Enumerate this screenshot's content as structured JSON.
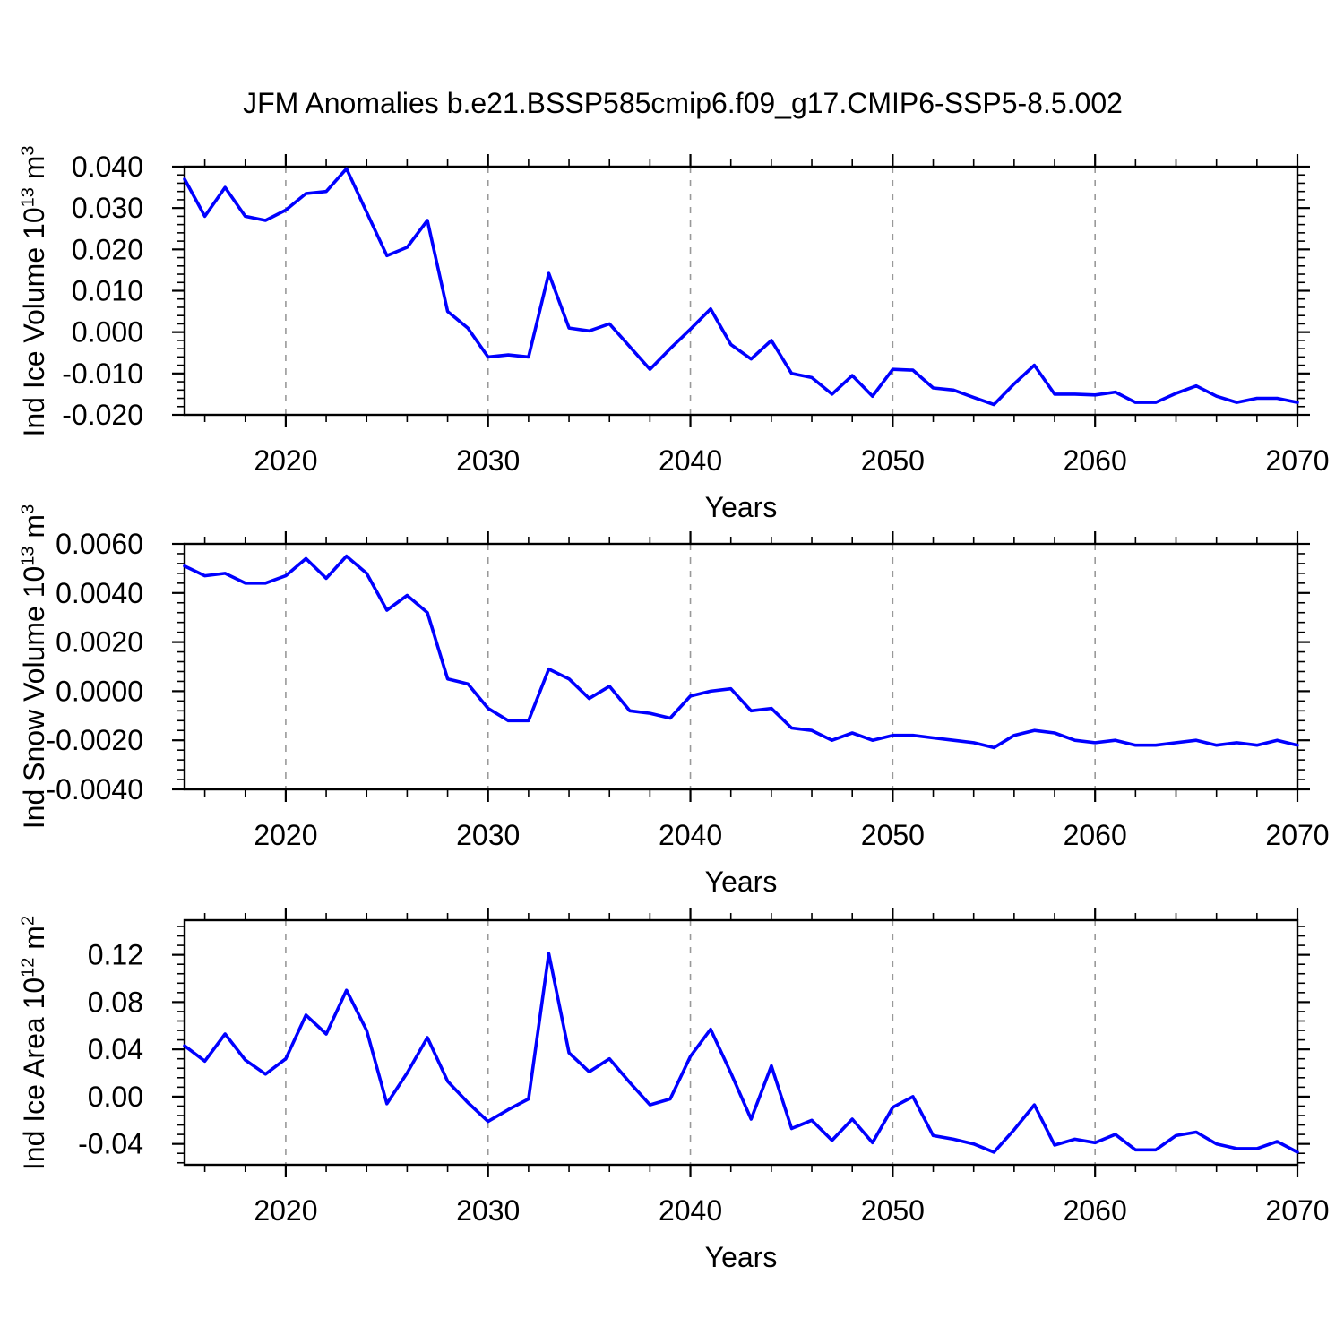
{
  "title": "JFM Anomalies b.e21.BSSP585cmip6.f09_g17.CMIP6-SSP5-8.5.002",
  "colors": {
    "line": "#0000ff",
    "frame": "#000000",
    "grid": "#999999",
    "text": "#000000",
    "background": "#ffffff"
  },
  "chart_data": [
    {
      "type": "line",
      "name": "ice-volume",
      "ylabel_plain": "Ind Ice Volume 10^13 m^3",
      "ylabel_segments": [
        {
          "t": "Ind Ice Volume 10"
        },
        {
          "t": "13",
          "sup": true
        },
        {
          "t": " m"
        },
        {
          "t": "3",
          "sup": true
        }
      ],
      "xlabel": "Years",
      "x_start": 2015,
      "x_end": 2070,
      "x_step": 1,
      "x_major_ticks": [
        2020,
        2030,
        2040,
        2050,
        2060,
        2070
      ],
      "x_minor_step": 2,
      "x_gridlines": [
        2020,
        2030,
        2040,
        2050,
        2060
      ],
      "ylim": [
        -0.02,
        0.04
      ],
      "y_major_ticks": [
        0.04,
        0.03,
        0.02,
        0.01,
        0.0,
        -0.01,
        -0.02
      ],
      "y_tick_labels": [
        "0.040",
        "0.030",
        "0.020",
        "0.010",
        "0.000",
        "-0.010",
        "-0.020"
      ],
      "y_minor_start": -0.02,
      "y_minor_step": 0.002,
      "grid": "vertical-dashed",
      "legend": "none",
      "values": [
        0.037,
        0.028,
        0.035,
        0.028,
        0.027,
        0.0295,
        0.0335,
        0.034,
        0.0395,
        0.029,
        0.0185,
        0.0205,
        0.027,
        0.005,
        0.001,
        -0.006,
        -0.0055,
        -0.006,
        0.0142,
        0.001,
        0.0003,
        0.002,
        -0.0035,
        -0.009,
        -0.004,
        0.0007,
        0.0056,
        -0.003,
        -0.0065,
        -0.002,
        -0.01,
        -0.011,
        -0.015,
        -0.0105,
        -0.0155,
        -0.009,
        -0.0092,
        -0.0135,
        -0.014,
        -0.0158,
        -0.0175,
        -0.0125,
        -0.008,
        -0.015,
        -0.015,
        -0.0152,
        -0.0145,
        -0.017,
        -0.017,
        -0.0148,
        -0.013,
        -0.0155,
        -0.017,
        -0.016,
        -0.016,
        -0.017
      ]
    },
    {
      "type": "line",
      "name": "snow-volume",
      "ylabel_plain": "Ind Snow Volume 10^13 m^3",
      "ylabel_segments": [
        {
          "t": "Ind Snow Volume 10"
        },
        {
          "t": "13",
          "sup": true
        },
        {
          "t": " m"
        },
        {
          "t": "3",
          "sup": true
        }
      ],
      "xlabel": "Years",
      "x_start": 2015,
      "x_end": 2070,
      "x_step": 1,
      "x_major_ticks": [
        2020,
        2030,
        2040,
        2050,
        2060,
        2070
      ],
      "x_minor_step": 2,
      "x_gridlines": [
        2020,
        2030,
        2040,
        2050,
        2060
      ],
      "ylim": [
        -0.004,
        0.006
      ],
      "y_major_ticks": [
        0.006,
        0.004,
        0.002,
        0.0,
        -0.002,
        -0.004
      ],
      "y_tick_labels": [
        "0.0060",
        "0.0040",
        "0.0020",
        "0.0000",
        "-0.0020",
        "-0.0040"
      ],
      "y_minor_start": -0.004,
      "y_minor_step": 0.0004,
      "grid": "vertical-dashed",
      "legend": "none",
      "values": [
        0.0051,
        0.0047,
        0.0048,
        0.0044,
        0.0044,
        0.0047,
        0.0054,
        0.0046,
        0.0055,
        0.0048,
        0.0033,
        0.0039,
        0.0032,
        0.0005,
        0.0003,
        -0.0007,
        -0.0012,
        -0.0012,
        0.0009,
        0.0005,
        -0.0003,
        0.0002,
        -0.0008,
        -0.0009,
        -0.0011,
        -0.0002,
        0.0,
        0.0001,
        -0.0008,
        -0.0007,
        -0.0015,
        -0.0016,
        -0.002,
        -0.0017,
        -0.002,
        -0.0018,
        -0.0018,
        -0.0019,
        -0.002,
        -0.0021,
        -0.0023,
        -0.0018,
        -0.0016,
        -0.0017,
        -0.002,
        -0.0021,
        -0.002,
        -0.0022,
        -0.0022,
        -0.0021,
        -0.002,
        -0.0022,
        -0.0021,
        -0.0022,
        -0.002,
        -0.0022
      ]
    },
    {
      "type": "line",
      "name": "ice-area",
      "ylabel_plain": "Ind Ice Area 10^12 m^2",
      "ylabel_segments": [
        {
          "t": "Ind Ice Area 10"
        },
        {
          "t": "12",
          "sup": true
        },
        {
          "t": " m"
        },
        {
          "t": "2",
          "sup": true
        }
      ],
      "xlabel": "Years",
      "x_start": 2015,
      "x_end": 2070,
      "x_step": 1,
      "x_major_ticks": [
        2020,
        2030,
        2040,
        2050,
        2060,
        2070
      ],
      "x_minor_step": 2,
      "x_gridlines": [
        2020,
        2030,
        2040,
        2050,
        2060
      ],
      "ylim": [
        -0.0577,
        0.1493
      ],
      "y_major_ticks": [
        0.12,
        0.08,
        0.04,
        0.0,
        -0.04
      ],
      "y_tick_labels": [
        "0.12",
        "0.08",
        "0.04",
        "0.00",
        "-0.04"
      ],
      "y_minor_start": -0.056,
      "y_minor_step": 0.008,
      "grid": "vertical-dashed",
      "legend": "none",
      "values": [
        0.043,
        0.03,
        0.053,
        0.031,
        0.019,
        0.032,
        0.069,
        0.053,
        0.09,
        0.056,
        -0.006,
        0.02,
        0.05,
        0.013,
        -0.005,
        -0.021,
        -0.011,
        -0.002,
        0.121,
        0.037,
        0.021,
        0.032,
        0.012,
        -0.007,
        -0.002,
        0.034,
        0.057,
        0.02,
        -0.019,
        0.026,
        -0.027,
        -0.02,
        -0.037,
        -0.019,
        -0.039,
        -0.009,
        0.0,
        -0.033,
        -0.036,
        -0.04,
        -0.047,
        -0.028,
        -0.007,
        -0.041,
        -0.036,
        -0.039,
        -0.032,
        -0.045,
        -0.045,
        -0.033,
        -0.03,
        -0.04,
        -0.044,
        -0.044,
        -0.038,
        -0.047
      ]
    }
  ]
}
